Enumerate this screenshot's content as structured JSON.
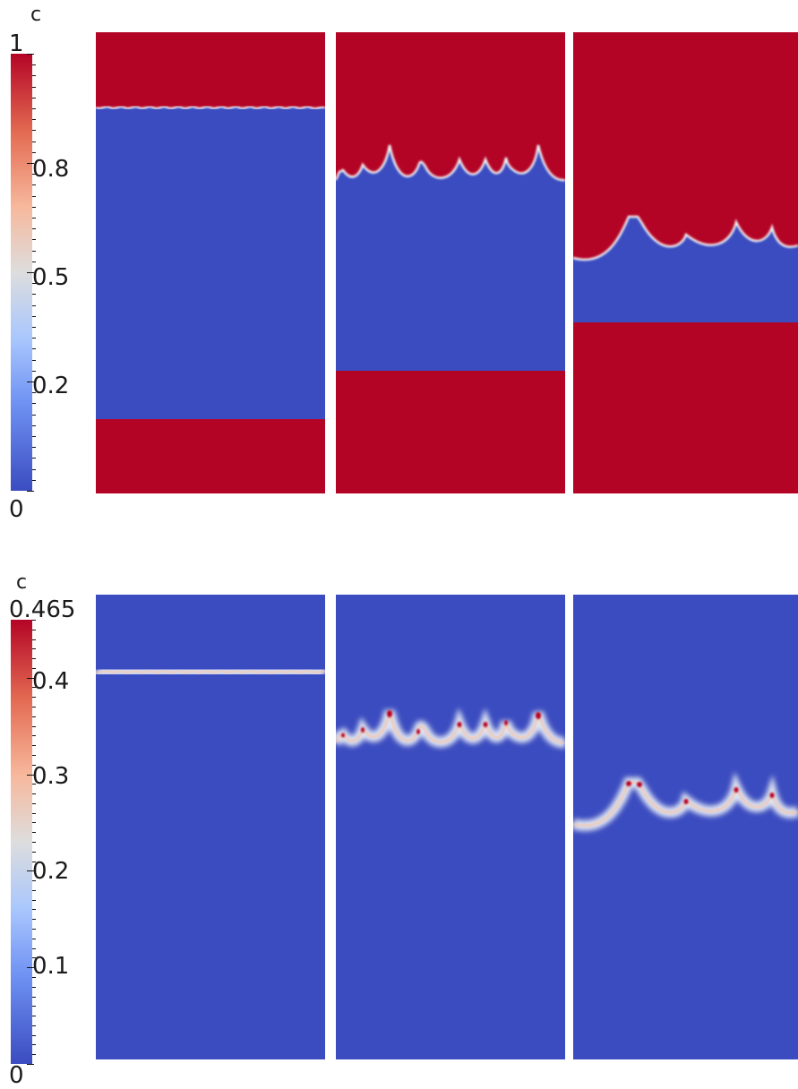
{
  "figure": {
    "top": {
      "legend_title": "c",
      "range_max_label": "1",
      "range_min_label": "0",
      "tick_labels": [
        "0.8",
        "0.5",
        "0.2"
      ],
      "panels": [
        "panel-1",
        "panel-2",
        "panel-3"
      ]
    },
    "bottom": {
      "legend_title": "c",
      "range_max_label": "0.465",
      "range_min_label": "0",
      "tick_labels": [
        "0.4",
        "0.3",
        "0.2",
        "0.1"
      ],
      "panels": [
        "panel-1",
        "panel-2",
        "panel-3"
      ]
    }
  },
  "colors": {
    "blue": "#3b4cc0",
    "red": "#b40426",
    "white": "#f2f2f2"
  }
}
